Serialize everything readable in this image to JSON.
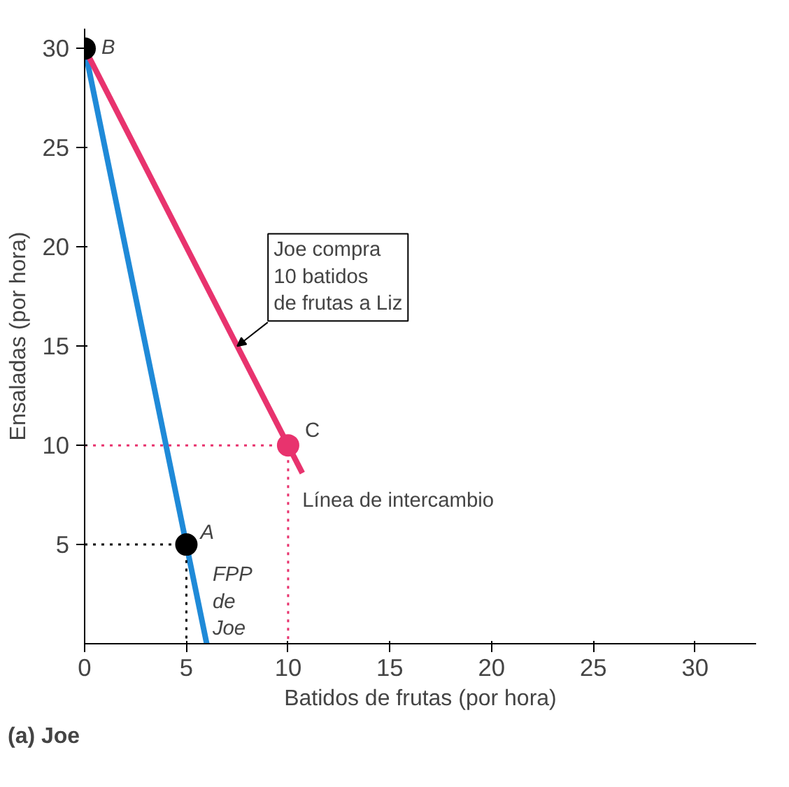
{
  "chart_data": {
    "type": "line",
    "xlabel": "Batidos de frutas (por hora)",
    "ylabel": "Ensaladas (por hora)",
    "xlim": [
      0,
      33
    ],
    "ylim": [
      0,
      31
    ],
    "xticks": [
      0,
      5,
      10,
      15,
      20,
      25,
      30
    ],
    "yticks": [
      5,
      10,
      15,
      20,
      25,
      30
    ],
    "grid": false,
    "series": [
      {
        "color": "#1f8ad8",
        "x": [
          0,
          6
        ],
        "values": [
          30,
          0
        ]
      },
      {
        "color": "#e8336e",
        "x": [
          0,
          10.7
        ],
        "values": [
          30,
          8.6
        ]
      },
      {
        "type": "line",
        "line_style": "dotted",
        "color": "#000000",
        "x": [
          0,
          5,
          5
        ],
        "values": [
          5,
          5,
          0
        ]
      },
      {
        "type": "line",
        "line_style": "dotted",
        "color": "#e8336e",
        "x": [
          0,
          10,
          10
        ],
        "values": [
          10,
          10,
          0
        ]
      },
      {
        "type": "scatter",
        "marker": "circle",
        "colors": [
          "#000000",
          "#000000",
          "#e8336e"
        ],
        "x": [
          0,
          5,
          10
        ],
        "values": [
          30,
          5,
          10
        ]
      }
    ],
    "annotations": [
      {
        "text": "B",
        "x": 0,
        "y": 30
      },
      {
        "text": "A",
        "x": 5,
        "y": 5
      },
      {
        "text": "C",
        "x": 10,
        "y": 10
      },
      {
        "text": "Joe compra\n10 batidos\nde frutas a Liz",
        "x": 7.5,
        "y": 15
      },
      {
        "text": "Línea de intercambio",
        "x": 10.7,
        "y": 8.6
      },
      {
        "text": "FPP\nde\nJoe",
        "x": 5.6,
        "y": 4
      },
      "(a) Joe"
    ]
  }
}
